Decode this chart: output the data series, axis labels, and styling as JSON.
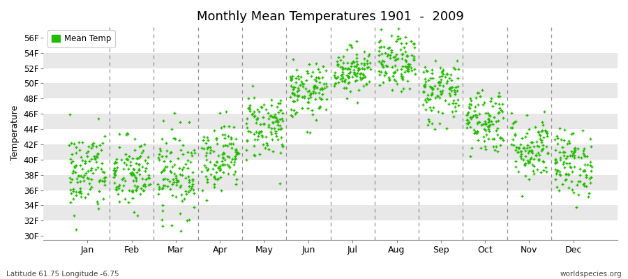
{
  "title": "Monthly Mean Temperatures 1901  -  2009",
  "ylabel": "Temperature",
  "xlabel_labels": [
    "Jan",
    "Feb",
    "Mar",
    "Apr",
    "May",
    "Jun",
    "Jul",
    "Aug",
    "Sep",
    "Oct",
    "Nov",
    "Dec"
  ],
  "legend_label": "Mean Temp",
  "dot_color": "#22BB00",
  "background_color": "#ffffff",
  "band_color_light": "#e8e8e8",
  "band_color_white": "#ffffff",
  "dashed_line_color": "#777777",
  "ytick_labels": [
    "30F",
    "32F",
    "34F",
    "36F",
    "38F",
    "40F",
    "42F",
    "44F",
    "46F",
    "48F",
    "50F",
    "52F",
    "54F",
    "56F"
  ],
  "ytick_values": [
    30,
    32,
    34,
    36,
    38,
    40,
    42,
    44,
    46,
    48,
    50,
    52,
    54,
    56
  ],
  "ylim": [
    29.5,
    57.5
  ],
  "xlim": [
    -0.5,
    12.5
  ],
  "subtitle_left": "Latitude 61.75 Longitude -6.75",
  "subtitle_right": "worldspecies.org",
  "monthly_means": [
    38.3,
    38.0,
    38.3,
    40.5,
    44.5,
    48.8,
    51.8,
    52.5,
    49.0,
    45.2,
    41.5,
    39.5
  ],
  "monthly_stds": [
    2.8,
    2.5,
    2.8,
    2.2,
    2.2,
    1.8,
    1.5,
    1.8,
    2.2,
    2.2,
    2.2,
    2.2
  ],
  "n_years": 109,
  "seed": 42,
  "dot_size": 8,
  "dot_marker": "+"
}
